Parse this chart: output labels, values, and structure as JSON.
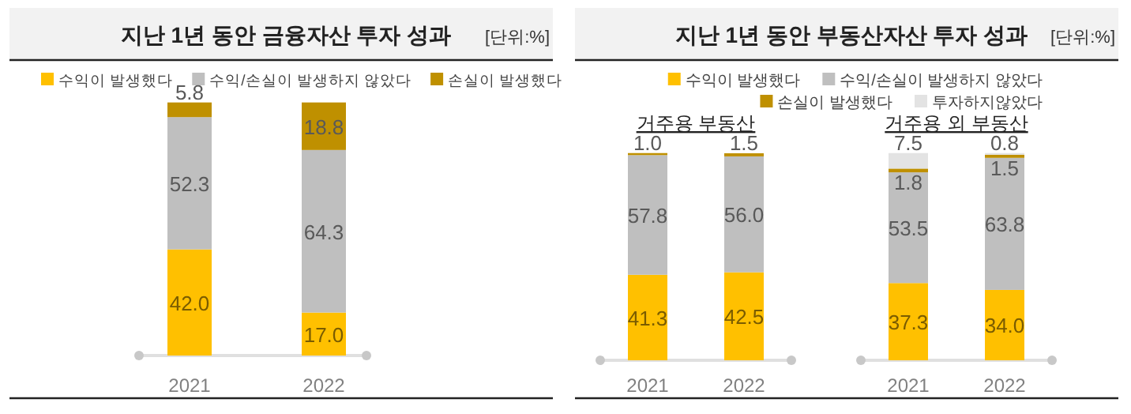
{
  "chart_data": [
    {
      "type": "bar",
      "stacked": true,
      "title": "지난 1년 동안 금융자산 투자 성과",
      "annotations": [
        "[단위:%]"
      ],
      "categories": [
        "2021",
        "2022"
      ],
      "ylim": [
        0,
        100
      ],
      "legend": "top",
      "series": [
        {
          "name": "수익이 발생했다",
          "color": "#ffc000",
          "values": [
            42.0,
            17.0
          ],
          "value_labels": [
            "42.0",
            "17.0"
          ]
        },
        {
          "name": "수익/손실이 발생하지 않았다",
          "color": "#bfbfbf",
          "values": [
            52.3,
            64.3
          ],
          "value_labels": [
            "52.3",
            "64.3"
          ]
        },
        {
          "name": "손실이 발생했다",
          "color": "#bf9000",
          "values": [
            5.8,
            18.8
          ],
          "value_labels": [
            "5.8",
            "18.8"
          ]
        }
      ]
    },
    {
      "type": "bar",
      "stacked": true,
      "title": "지난 1년 동안 부동산자산 투자 성과",
      "annotations": [
        "[단위:%]",
        "거주용 부동산",
        "거주용 외 부동산"
      ],
      "categories": [
        "2021",
        "2022",
        "2021",
        "2022"
      ],
      "ylim": [
        0,
        100
      ],
      "legend": "top right",
      "series": [
        {
          "name": "수익이 발생했다",
          "color": "#ffc000",
          "values": [
            41.3,
            42.5,
            37.3,
            34.0
          ],
          "value_labels": [
            "41.3",
            "42.5",
            "37.3",
            "34.0"
          ]
        },
        {
          "name": "수익/손실이 발생하지 않았다",
          "color": "#bfbfbf",
          "values": [
            57.8,
            56.0,
            53.5,
            63.8
          ],
          "value_labels": [
            "57.8",
            "56.0",
            "53.5",
            "63.8"
          ]
        },
        {
          "name": "손실이 발생했다",
          "color": "#bf9000",
          "values": [
            1.0,
            1.5,
            1.8,
            1.5
          ],
          "value_labels": [
            "1.0",
            "1.5",
            "1.8",
            "1.5"
          ]
        },
        {
          "name": "투자하지않았다",
          "color": "#e3e3e3",
          "values": [
            null,
            null,
            7.5,
            0.8
          ],
          "value_labels": [
            null,
            null,
            "7.5",
            "0.8"
          ]
        }
      ]
    }
  ]
}
